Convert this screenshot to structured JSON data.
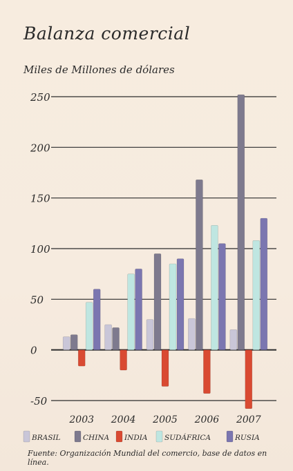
{
  "chart_data": {
    "type": "bar",
    "title": "Balanza comercial",
    "ylabel": "Miles de Millones de dólares",
    "categories": [
      "2003",
      "2004",
      "2005",
      "2006",
      "2007"
    ],
    "ylim": [
      -50,
      250
    ],
    "yticks": [
      250,
      200,
      150,
      100,
      50,
      0,
      -50
    ],
    "grid": true,
    "legend_position": "bottom",
    "series": [
      {
        "name": "BRASIL",
        "color": "#c9c6d8",
        "values": [
          13,
          25,
          30,
          31,
          20
        ]
      },
      {
        "name": "CHINA",
        "color": "#7e7a8e",
        "values": [
          15,
          22,
          95,
          168,
          252
        ]
      },
      {
        "name": "INDIA",
        "color": "#d94a32",
        "values": [
          -16,
          -20,
          -36,
          -43,
          -58
        ]
      },
      {
        "name": "SUDÁFRICA",
        "color": "#bfe6e1",
        "values": [
          47,
          75,
          85,
          123,
          108
        ]
      },
      {
        "name": "RUSIA",
        "color": "#7b76b0",
        "values": [
          60,
          80,
          90,
          105,
          130
        ]
      }
    ],
    "source": "Fuente: Organización Mundial del comercio, base de datos en línea."
  }
}
